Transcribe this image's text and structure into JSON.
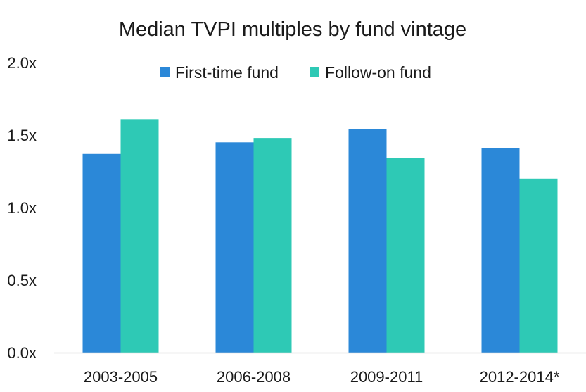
{
  "chart_data": {
    "type": "bar",
    "title": "Median TVPI multiples by fund vintage",
    "xlabel": "",
    "ylabel": "",
    "categories": [
      "2003-2005",
      "2006-2008",
      "2009-2011",
      "2012-2014*"
    ],
    "series": [
      {
        "name": "First-time fund",
        "color": "#2B88D8",
        "values": [
          1.37,
          1.45,
          1.54,
          1.41
        ]
      },
      {
        "name": "Follow-on fund",
        "color": "#2EC9B5",
        "values": [
          1.61,
          1.48,
          1.34,
          1.2
        ]
      }
    ],
    "ylim": [
      0,
      2.0
    ],
    "y_ticks": [
      0.0,
      0.5,
      1.0,
      1.5,
      2.0
    ],
    "y_tick_labels": [
      "0.0x",
      "0.5x",
      "1.0x",
      "1.5x",
      "2.0x"
    ],
    "grid": false,
    "legend_position": "top-center",
    "colors": {
      "axis_line": "#D9D9D9",
      "text": "#1A1A1A"
    }
  }
}
